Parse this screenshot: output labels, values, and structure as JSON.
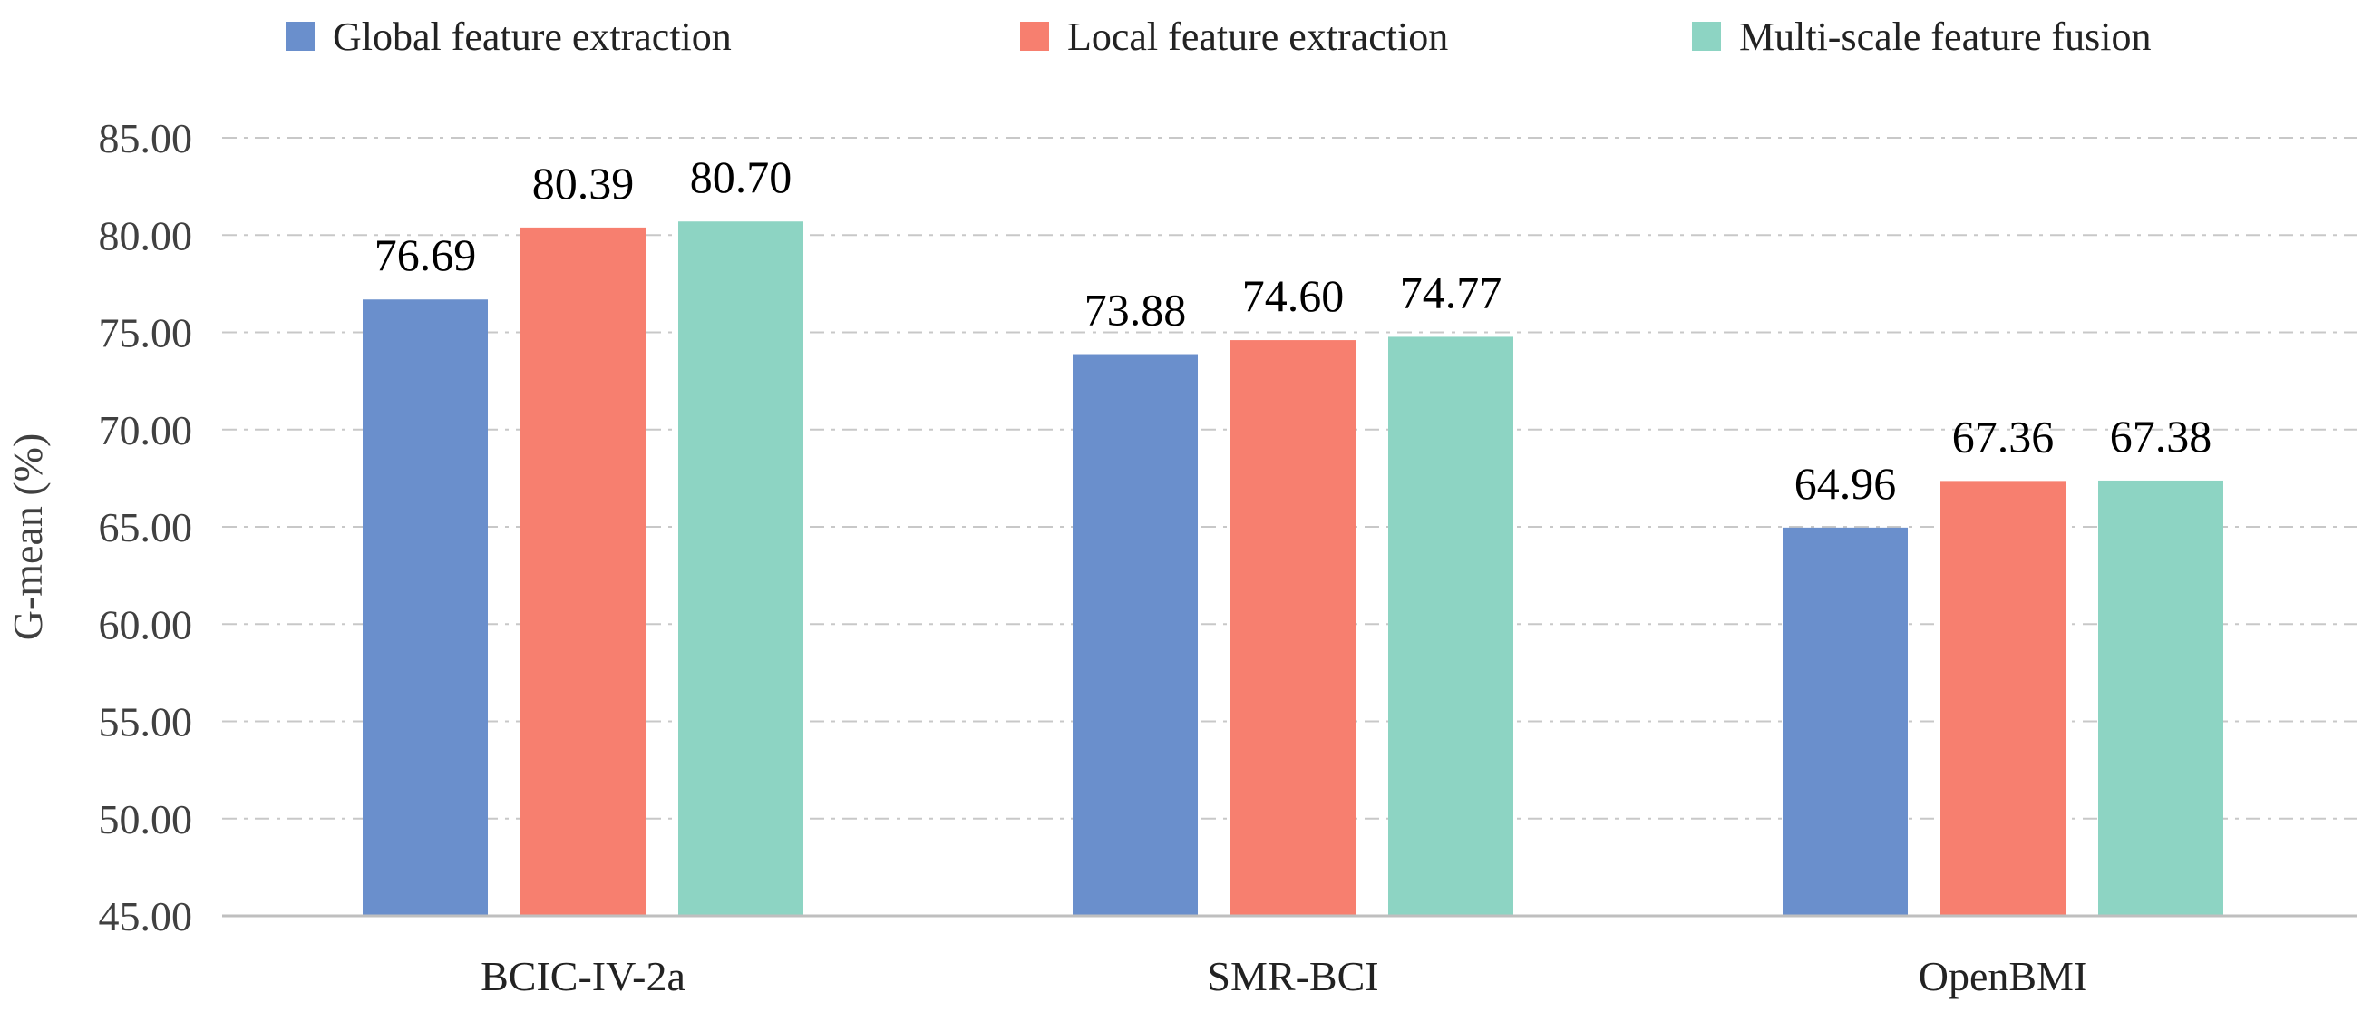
{
  "chart_data": {
    "type": "bar",
    "title": "",
    "xlabel": "",
    "ylabel": "G-mean (%)",
    "ylim": [
      45,
      85
    ],
    "ytick_step": 5,
    "ytick_labels": [
      "45.00",
      "50.00",
      "55.00",
      "60.00",
      "65.00",
      "70.00",
      "75.00",
      "80.00",
      "85.00"
    ],
    "grid": true,
    "legend_position": "top",
    "categories": [
      "BCIC-IV-2a",
      "SMR-BCI",
      "OpenBMI"
    ],
    "series": [
      {
        "name": "Global  feature extraction",
        "color": "#6a8fcc",
        "values": [
          76.69,
          73.88,
          64.96
        ],
        "labels": [
          "76.69",
          "73.88",
          "64.96"
        ]
      },
      {
        "name": "Local feature extraction",
        "color": "#f77f6f",
        "values": [
          80.39,
          74.6,
          67.36
        ],
        "labels": [
          "80.39",
          "74.60",
          "67.36"
        ]
      },
      {
        "name": "Multi-scale feature fusion",
        "color": "#8dd4c3",
        "values": [
          80.7,
          74.77,
          67.38
        ],
        "labels": [
          "80.70",
          "74.77",
          "67.38"
        ]
      }
    ]
  }
}
